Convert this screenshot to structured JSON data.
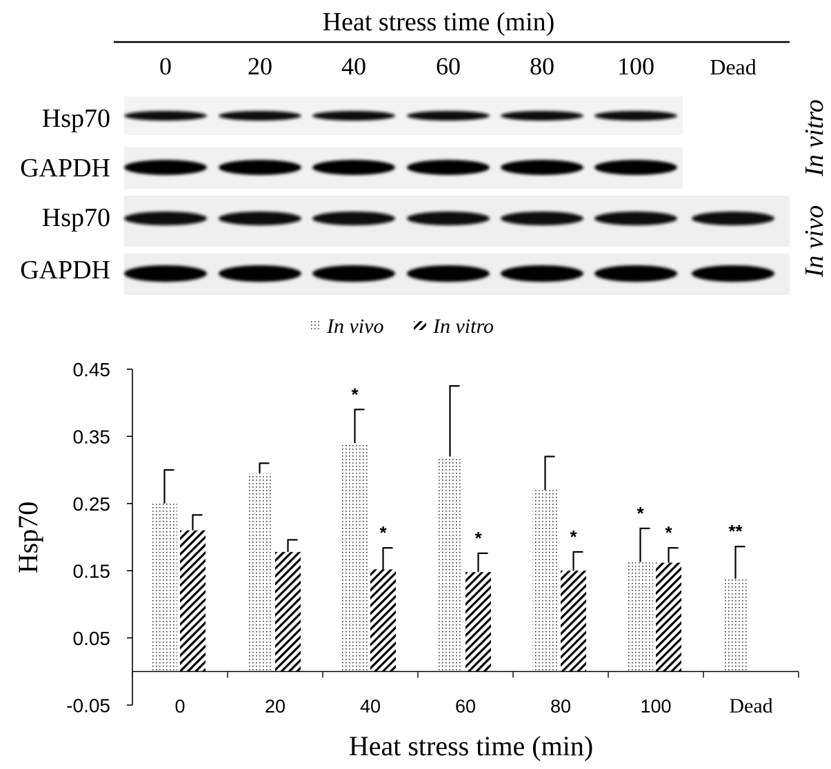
{
  "blot": {
    "header_title": "Heat stress time (min)",
    "lanes": [
      "0",
      "20",
      "40",
      "60",
      "80",
      "100",
      "Dead"
    ],
    "rows": [
      "Hsp70",
      "GAPDH",
      "Hsp70",
      "GAPDH"
    ],
    "side_labels": [
      "In vitro",
      "In vivo"
    ]
  },
  "chart_data": {
    "type": "bar",
    "title": "",
    "xlabel": "Heat stress time (min)",
    "ylabel": "Hsp70",
    "categories": [
      "0",
      "20",
      "40",
      "60",
      "80",
      "100",
      "Dead"
    ],
    "ylim": [
      -0.05,
      0.45
    ],
    "yticks": [
      "0.45",
      "0.35",
      "0.25",
      "0.15",
      "0.05",
      "-0.05"
    ],
    "legend": {
      "placement": "top-center",
      "entries": [
        "In vivo",
        "In vitro"
      ]
    },
    "series": [
      {
        "name": "In vivo",
        "pattern": "dots",
        "values": [
          0.25,
          0.295,
          0.34,
          0.32,
          0.27,
          0.163,
          0.138
        ],
        "errors": [
          0.05,
          0.015,
          0.05,
          0.105,
          0.05,
          0.05,
          0.048
        ],
        "annotations": [
          "",
          "",
          "*",
          "",
          "",
          "*",
          "**"
        ]
      },
      {
        "name": "In vitro",
        "pattern": "hatch",
        "values": [
          0.21,
          0.178,
          0.152,
          0.148,
          0.15,
          0.162,
          null
        ],
        "errors": [
          0.023,
          0.018,
          0.032,
          0.028,
          0.028,
          0.022,
          null
        ],
        "annotations": [
          "",
          "",
          "*",
          "*",
          "*",
          "*",
          ""
        ]
      }
    ]
  }
}
